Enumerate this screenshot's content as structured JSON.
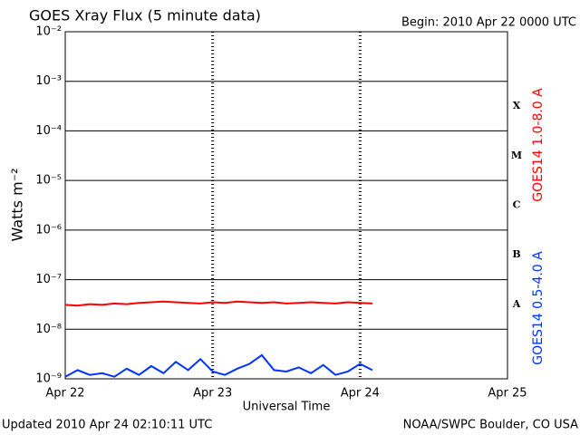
{
  "chart_data": {
    "type": "line",
    "title": "GOES Xray Flux (5 minute data)",
    "subtitle": "Begin:  2010 Apr 22 0000 UTC",
    "ylabel": "Watts m⁻²",
    "xlabel": "Universal Time",
    "footer_left": "Updated 2010 Apr 24 02:10:11 UTC",
    "footer_right": "NOAA/SWPC Boulder, CO USA",
    "class_labels": [
      "X",
      "M",
      "C",
      "B",
      "A"
    ],
    "log_y": true,
    "grid": true,
    "xlim": [
      0,
      72
    ],
    "xticks": [
      {
        "value": 0,
        "label": "Apr 22"
      },
      {
        "value": 24,
        "label": "Apr 23"
      },
      {
        "value": 48,
        "label": "Apr 24"
      },
      {
        "value": 72,
        "label": "Apr 25"
      }
    ],
    "ylim": [
      1e-09,
      0.01
    ],
    "yticks": [
      {
        "value": 0.01,
        "label": "10⁻²"
      },
      {
        "value": 0.001,
        "label": "10⁻³"
      },
      {
        "value": 0.0001,
        "label": "10⁻⁴"
      },
      {
        "value": 1e-05,
        "label": "10⁻⁵"
      },
      {
        "value": 1e-06,
        "label": "10⁻⁶"
      },
      {
        "value": 1e-07,
        "label": "10⁻⁷"
      },
      {
        "value": 1e-08,
        "label": "10⁻⁸"
      },
      {
        "value": 1e-09,
        "label": "10⁻⁹"
      }
    ],
    "x": [
      0,
      2,
      4,
      6,
      8,
      10,
      12,
      14,
      16,
      18,
      20,
      22,
      24,
      26,
      28,
      30,
      32,
      34,
      36,
      38,
      40,
      42,
      44,
      46,
      48,
      50
    ],
    "series": [
      {
        "name": "GOES14 1.0-8.0 A",
        "color": "#ff0000",
        "values": [
          3.1e-08,
          3e-08,
          3.2e-08,
          3.1e-08,
          3.3e-08,
          3.2e-08,
          3.4e-08,
          3.5e-08,
          3.6e-08,
          3.5e-08,
          3.4e-08,
          3.3e-08,
          3.5e-08,
          3.4e-08,
          3.6e-08,
          3.5e-08,
          3.4e-08,
          3.5e-08,
          3.3e-08,
          3.4e-08,
          3.5e-08,
          3.4e-08,
          3.3e-08,
          3.5e-08,
          3.4e-08,
          3.3e-08
        ]
      },
      {
        "name": "GOES14 0.5-4.0 A",
        "color": "#0033ff",
        "values": [
          1.1e-09,
          1.5e-09,
          1.2e-09,
          1.3e-09,
          1.1e-09,
          1.6e-09,
          1.2e-09,
          1.8e-09,
          1.3e-09,
          2.2e-09,
          1.5e-09,
          2.5e-09,
          1.4e-09,
          1.2e-09,
          1.6e-09,
          2e-09,
          3e-09,
          1.5e-09,
          1.4e-09,
          1.7e-09,
          1.3e-09,
          1.9e-09,
          1.2e-09,
          1.4e-09,
          2e-09,
          1.5e-09
        ]
      }
    ]
  }
}
